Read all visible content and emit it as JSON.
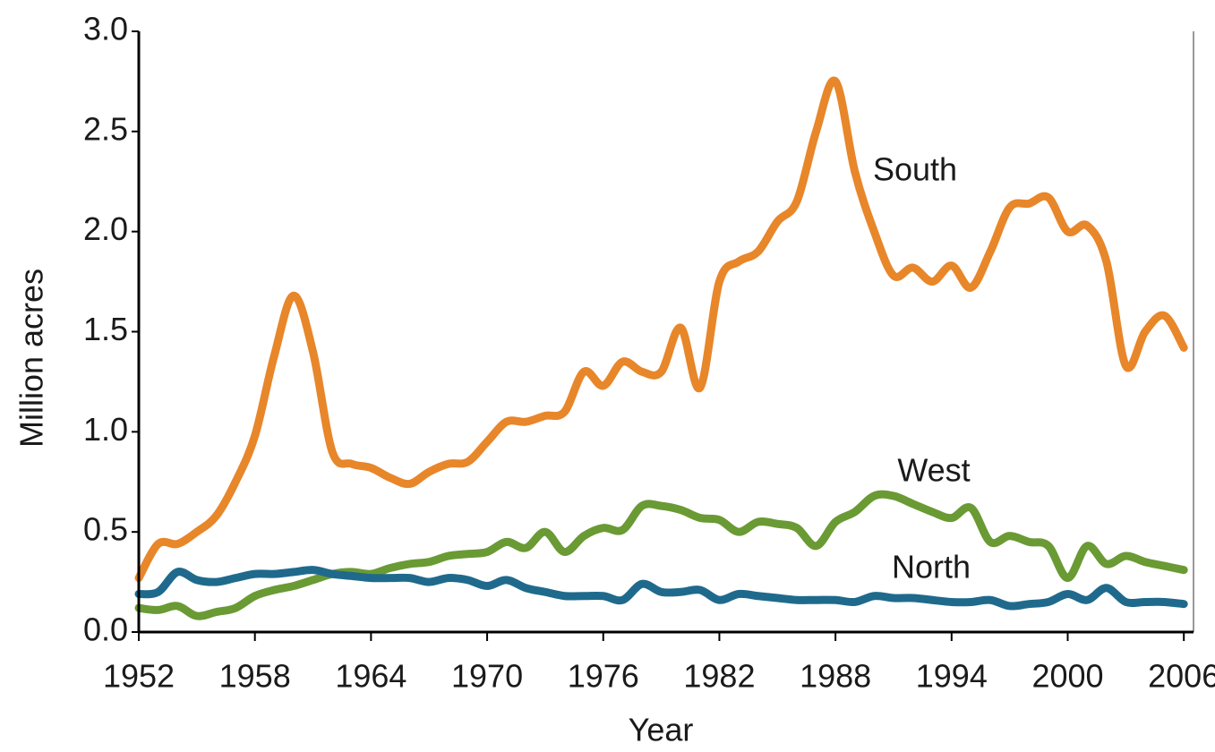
{
  "chart_data": {
    "type": "line",
    "x_label": "Year",
    "y_label": "Million acres",
    "x": [
      1952,
      1953,
      1954,
      1955,
      1956,
      1957,
      1958,
      1959,
      1960,
      1961,
      1962,
      1963,
      1964,
      1965,
      1966,
      1967,
      1968,
      1969,
      1970,
      1971,
      1972,
      1973,
      1974,
      1975,
      1976,
      1977,
      1978,
      1979,
      1980,
      1981,
      1982,
      1983,
      1984,
      1985,
      1986,
      1987,
      1988,
      1989,
      1990,
      1991,
      1992,
      1993,
      1994,
      1995,
      1996,
      1997,
      1998,
      1999,
      2000,
      2001,
      2002,
      2003,
      2004,
      2005,
      2006
    ],
    "series": [
      {
        "name": "South",
        "color": "#e8862a",
        "values": [
          0.27,
          0.44,
          0.44,
          0.5,
          0.58,
          0.75,
          0.98,
          1.38,
          1.68,
          1.4,
          0.9,
          0.84,
          0.82,
          0.77,
          0.74,
          0.8,
          0.84,
          0.85,
          0.95,
          1.05,
          1.05,
          1.08,
          1.1,
          1.3,
          1.23,
          1.35,
          1.3,
          1.3,
          1.52,
          1.22,
          1.75,
          1.85,
          1.9,
          2.05,
          2.15,
          2.5,
          2.75,
          2.3,
          2.0,
          1.78,
          1.82,
          1.75,
          1.83,
          1.72,
          1.9,
          2.12,
          2.14,
          2.17,
          2.0,
          2.03,
          1.85,
          1.33,
          1.5,
          1.58,
          1.42
        ]
      },
      {
        "name": "West",
        "color": "#6a9a34",
        "values": [
          0.12,
          0.11,
          0.13,
          0.08,
          0.1,
          0.12,
          0.18,
          0.21,
          0.23,
          0.26,
          0.29,
          0.3,
          0.29,
          0.32,
          0.34,
          0.35,
          0.38,
          0.39,
          0.4,
          0.45,
          0.42,
          0.5,
          0.4,
          0.48,
          0.52,
          0.51,
          0.63,
          0.63,
          0.61,
          0.57,
          0.56,
          0.5,
          0.55,
          0.54,
          0.52,
          0.43,
          0.55,
          0.6,
          0.68,
          0.68,
          0.64,
          0.6,
          0.57,
          0.62,
          0.45,
          0.48,
          0.45,
          0.43,
          0.27,
          0.43,
          0.34,
          0.38,
          0.35,
          0.33,
          0.31
        ]
      },
      {
        "name": "North",
        "color": "#1f6a8c",
        "values": [
          0.19,
          0.2,
          0.3,
          0.26,
          0.25,
          0.27,
          0.29,
          0.29,
          0.3,
          0.31,
          0.29,
          0.28,
          0.27,
          0.27,
          0.27,
          0.25,
          0.27,
          0.26,
          0.23,
          0.26,
          0.22,
          0.2,
          0.18,
          0.18,
          0.18,
          0.16,
          0.24,
          0.2,
          0.2,
          0.21,
          0.16,
          0.19,
          0.18,
          0.17,
          0.16,
          0.16,
          0.16,
          0.15,
          0.18,
          0.17,
          0.17,
          0.16,
          0.15,
          0.15,
          0.16,
          0.13,
          0.14,
          0.15,
          0.19,
          0.16,
          0.22,
          0.15,
          0.15,
          0.15,
          0.14
        ]
      }
    ],
    "xlim": [
      1952,
      2006.5
    ],
    "xticks": [
      1952,
      1958,
      1964,
      1970,
      1976,
      1982,
      1988,
      1994,
      2000,
      2006
    ],
    "ylim": [
      0,
      3
    ],
    "yticks": [
      {
        "value": 0,
        "label": "0.0"
      },
      {
        "value": 0.5,
        "label": "0.5"
      },
      {
        "value": 1,
        "label": "1.0"
      },
      {
        "value": 1.5,
        "label": "1.5"
      },
      {
        "value": 2,
        "label": "2.0"
      },
      {
        "value": 2.5,
        "label": "2.5"
      },
      {
        "value": 3,
        "label": "3.0"
      }
    ],
    "grid": false
  }
}
